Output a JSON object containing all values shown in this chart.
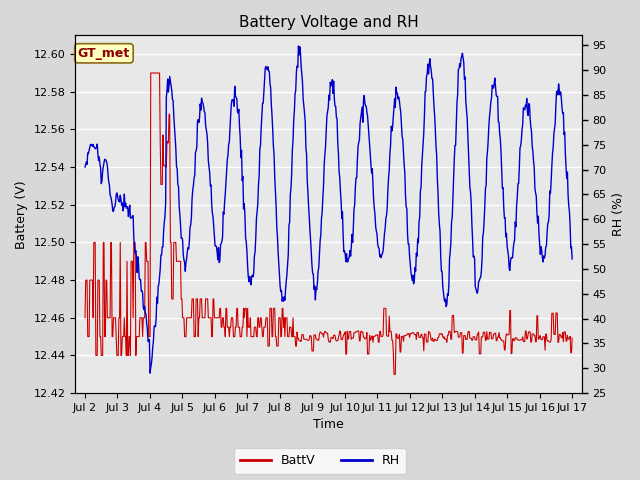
{
  "title": "Battery Voltage and RH",
  "xlabel": "Time",
  "ylabel_left": "Battery (V)",
  "ylabel_right": "RH (%)",
  "ylim_left": [
    12.42,
    12.61
  ],
  "ylim_right": [
    25,
    97
  ],
  "yticks_left": [
    12.42,
    12.44,
    12.46,
    12.48,
    12.5,
    12.52,
    12.54,
    12.56,
    12.58,
    12.6
  ],
  "yticks_right": [
    25,
    30,
    35,
    40,
    45,
    50,
    55,
    60,
    65,
    70,
    75,
    80,
    85,
    90,
    95
  ],
  "xtick_labels": [
    "Jul 2",
    "Jul 3",
    "Jul 4",
    "Jul 5",
    "Jul 6",
    "Jul 7",
    "Jul 8",
    "Jul 9",
    "Jul 10",
    "Jul 11",
    "Jul 12",
    "Jul 13",
    "Jul 14",
    "Jul 15",
    "Jul 16",
    "Jul 17"
  ],
  "legend_label_red": "BattV",
  "legend_label_blue": "RH",
  "annotation_text": "GT_met",
  "line_color_red": "#cc0000",
  "line_color_blue": "#0000cc",
  "bg_color_outer": "#d8d8d8",
  "bg_color_inner": "#e8e8e8",
  "grid_color": "#ffffff",
  "title_fontsize": 11,
  "axis_label_fontsize": 9,
  "tick_fontsize": 8,
  "legend_fontsize": 9
}
